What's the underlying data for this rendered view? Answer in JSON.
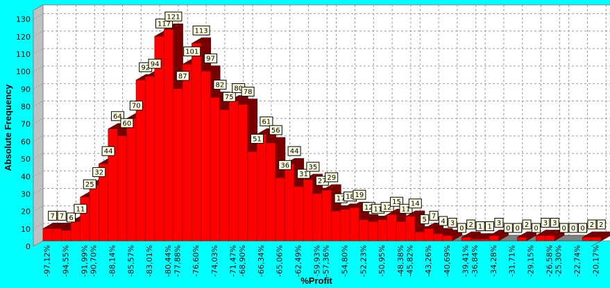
{
  "chart_data": {
    "type": "bar",
    "title": "",
    "xlabel": "%Profit",
    "ylabel": "Absolute Frequency",
    "ylim": [
      0,
      135
    ],
    "yticks": [
      0,
      10,
      20,
      30,
      40,
      50,
      60,
      70,
      80,
      90,
      100,
      110,
      120,
      130
    ],
    "x_tick_labels": [
      "-97,12%",
      "-94,55%",
      "-91,99%",
      "-90,70%",
      "-88,14%",
      "-85,57%",
      "-83,01%",
      "-80,44%",
      "-77,88%",
      "-76,60%",
      "-74,03%",
      "-71,47%",
      "-68,90%",
      "-66,34%",
      "-65,06%",
      "-62,49%",
      "-59,93%",
      "-57,36%",
      "-54,80%",
      "-52,23%",
      "-50,95%",
      "-48,38%",
      "-45,82%",
      "-43,26%",
      "-40,69%",
      "-39,41%",
      "-36,84%",
      "-34,28%",
      "-31,71%",
      "-29,15%",
      "-26,58%",
      "-25,30%",
      "-22,74%",
      "-20,17%"
    ],
    "values": [
      7,
      7,
      6,
      11,
      25,
      32,
      44,
      64,
      60,
      70,
      92,
      94,
      117,
      121,
      87,
      101,
      113,
      97,
      82,
      75,
      80,
      78,
      51,
      61,
      56,
      36,
      44,
      31,
      35,
      27,
      29,
      17,
      18,
      19,
      12,
      11,
      12,
      15,
      11,
      14,
      5,
      7,
      4,
      3,
      0,
      2,
      1,
      1,
      3,
      0,
      0,
      2,
      0,
      3,
      3,
      0,
      0,
      0,
      2,
      2
    ],
    "grid": true,
    "legend": "none",
    "colors": {
      "background": "#00ffff",
      "plot_wall": "#ffffff",
      "bar_face": "#ff0000",
      "bar_side": "#7a0000",
      "floor": "#808080",
      "label_box": "#ffffe1"
    }
  }
}
